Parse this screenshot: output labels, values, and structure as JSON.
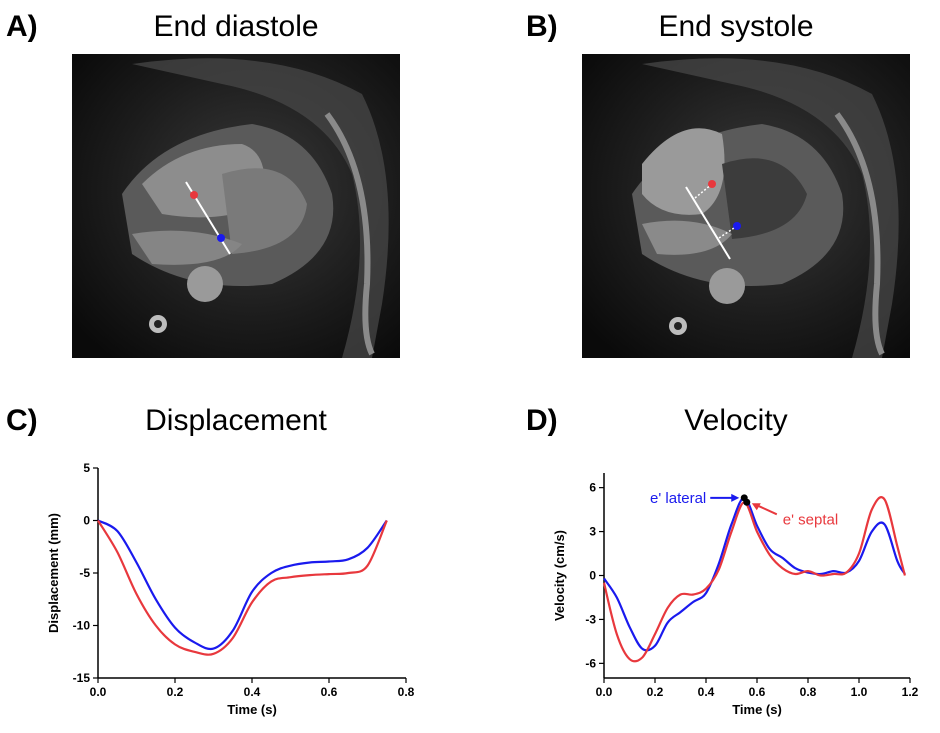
{
  "panels": {
    "a": {
      "letter": "A)",
      "title": "End diastole"
    },
    "b": {
      "letter": "B)",
      "title": "End systole"
    },
    "c": {
      "letter": "C)",
      "title": "Displacement"
    },
    "d": {
      "letter": "D)",
      "title": "Velocity"
    }
  },
  "colors": {
    "red": "#e8383d",
    "blue": "#1a1aee",
    "axis": "#000000"
  },
  "chart_data": [
    {
      "type": "line",
      "title": "Displacement",
      "xlabel": "Time (s)",
      "ylabel": "Displacement (mm)",
      "xlim": [
        0,
        0.8
      ],
      "ylim": [
        -15,
        5
      ],
      "xticks": [
        0.0,
        0.2,
        0.4,
        0.6,
        0.8
      ],
      "xtick_labels": [
        "0.0",
        "0.2",
        "0.4",
        "0.6",
        "0.8"
      ],
      "yticks": [
        5,
        0,
        -5,
        -10,
        -15
      ],
      "ytick_labels": [
        "5",
        "0",
        "-5",
        "-10",
        "-15"
      ],
      "series": [
        {
          "color": "#1a1aee",
          "x": [
            0,
            0.05,
            0.1,
            0.15,
            0.2,
            0.25,
            0.3,
            0.35,
            0.4,
            0.45,
            0.5,
            0.55,
            0.6,
            0.65,
            0.7,
            0.75
          ],
          "y": [
            0,
            -1.0,
            -4.0,
            -7.5,
            -10.2,
            -11.6,
            -12.2,
            -10.5,
            -6.8,
            -5.0,
            -4.3,
            -4.0,
            -3.9,
            -3.7,
            -2.6,
            0
          ]
        },
        {
          "color": "#e8383d",
          "x": [
            0,
            0.05,
            0.1,
            0.15,
            0.2,
            0.25,
            0.3,
            0.35,
            0.4,
            0.45,
            0.5,
            0.55,
            0.6,
            0.65,
            0.7,
            0.75
          ],
          "y": [
            0,
            -3.0,
            -7.0,
            -10.0,
            -11.8,
            -12.5,
            -12.7,
            -11.2,
            -7.8,
            -5.8,
            -5.4,
            -5.2,
            -5.1,
            -5.0,
            -4.3,
            0
          ]
        }
      ]
    },
    {
      "type": "line",
      "title": "Velocity",
      "xlabel": "Time (s)",
      "ylabel": "Velocity (cm/s)",
      "xlim": [
        0,
        1.2
      ],
      "ylim": [
        -7,
        7
      ],
      "xticks": [
        0.0,
        0.2,
        0.4,
        0.6,
        0.8,
        1.0,
        1.2
      ],
      "xtick_labels": [
        "0.0",
        "0.2",
        "0.4",
        "0.6",
        "0.8",
        "1.0",
        "1.2"
      ],
      "yticks": [
        6,
        3,
        0,
        -3,
        -6
      ],
      "ytick_labels": [
        "6",
        "3",
        "0",
        "-3",
        "-6"
      ],
      "series": [
        {
          "color": "#1a1aee",
          "x": [
            0,
            0.05,
            0.1,
            0.15,
            0.2,
            0.25,
            0.3,
            0.35,
            0.4,
            0.45,
            0.5,
            0.55,
            0.6,
            0.65,
            0.7,
            0.75,
            0.8,
            0.85,
            0.9,
            0.95,
            1.0,
            1.05,
            1.1,
            1.15,
            1.18
          ],
          "y": [
            -0.2,
            -1.5,
            -3.5,
            -5.0,
            -4.8,
            -3.2,
            -2.5,
            -1.8,
            -1.2,
            0.8,
            3.5,
            5.3,
            3.4,
            1.8,
            1.2,
            0.5,
            0.2,
            0.1,
            0.3,
            0.2,
            1.0,
            3.0,
            3.5,
            1.0,
            0.1
          ]
        },
        {
          "color": "#e8383d",
          "x": [
            0,
            0.05,
            0.1,
            0.15,
            0.2,
            0.25,
            0.3,
            0.35,
            0.4,
            0.45,
            0.5,
            0.55,
            0.6,
            0.65,
            0.7,
            0.75,
            0.8,
            0.85,
            0.9,
            0.95,
            1.0,
            1.05,
            1.1,
            1.15,
            1.18
          ],
          "y": [
            -0.5,
            -4.0,
            -5.7,
            -5.6,
            -4.0,
            -2.2,
            -1.3,
            -1.3,
            -0.9,
            0.4,
            3.0,
            5.0,
            3.0,
            1.4,
            0.5,
            0.1,
            0.3,
            0.0,
            0.1,
            0.2,
            1.5,
            4.5,
            5.2,
            2.0,
            0.0
          ]
        }
      ],
      "annotations": [
        {
          "text": "e' lateral",
          "color": "#1a1aee",
          "x": 0.55,
          "y": 5.3
        },
        {
          "text": "e' septal",
          "color": "#e8383d",
          "x": 0.56,
          "y": 5.0
        }
      ]
    }
  ]
}
